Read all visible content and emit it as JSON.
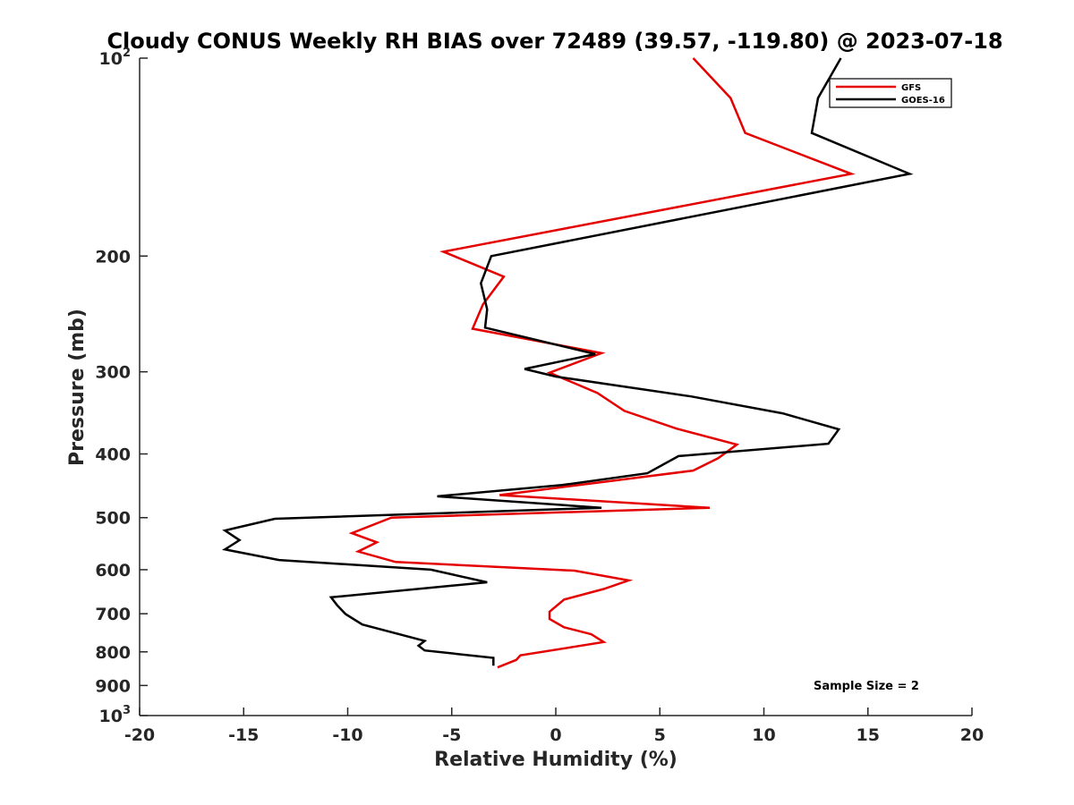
{
  "chart_data": {
    "type": "line",
    "title": "Cloudy CONUS Weekly RH BIAS over 72489 (39.57, -119.80) @ 2023-07-18",
    "xlabel": "Relative Humidity (%)",
    "ylabel": "Pressure (mb)",
    "xlim": [
      -20,
      20
    ],
    "ylim": [
      100,
      1000
    ],
    "y_scale": "log",
    "y_reversed": true,
    "x_ticks": [
      "-20",
      "-15",
      "-10",
      "-5",
      "0",
      "5",
      "10",
      "15",
      "20"
    ],
    "y_ticks": [
      {
        "value": 100,
        "base": "10",
        "exp": "2"
      },
      {
        "value": 200,
        "label": "200"
      },
      {
        "value": 300,
        "label": "300"
      },
      {
        "value": 400,
        "label": "400"
      },
      {
        "value": 500,
        "label": "500"
      },
      {
        "value": 600,
        "label": "600"
      },
      {
        "value": 700,
        "label": "700"
      },
      {
        "value": 800,
        "label": "800"
      },
      {
        "value": 900,
        "label": "900"
      },
      {
        "value": 1000,
        "base": "10",
        "exp": "3"
      }
    ],
    "grid": false,
    "legend_position": "top-right",
    "annotation": "Sample Size = 2",
    "series": [
      {
        "name": "GFS",
        "color": "#e50000",
        "points": [
          [
            6.6,
            100
          ],
          [
            8.4,
            115
          ],
          [
            9.1,
            130
          ],
          [
            14.2,
            150
          ],
          [
            -5.4,
            197
          ],
          [
            -2.5,
            215
          ],
          [
            -3.5,
            237
          ],
          [
            -4.0,
            258
          ],
          [
            2.2,
            281
          ],
          [
            -0.3,
            301
          ],
          [
            2.0,
            323
          ],
          [
            3.3,
            344
          ],
          [
            5.8,
            366
          ],
          [
            8.7,
            387
          ],
          [
            7.8,
            406
          ],
          [
            6.6,
            424
          ],
          [
            -2.7,
            462
          ],
          [
            7.4,
            483
          ],
          [
            -7.9,
            500
          ],
          [
            -9.8,
            528
          ],
          [
            -8.6,
            545
          ],
          [
            -9.5,
            563
          ],
          [
            -7.7,
            584
          ],
          [
            0.9,
            602
          ],
          [
            3.5,
            623
          ],
          [
            2.3,
            642
          ],
          [
            0.4,
            666
          ],
          [
            -0.3,
            695
          ],
          [
            -0.3,
            713
          ],
          [
            0.4,
            734
          ],
          [
            1.7,
            752
          ],
          [
            2.3,
            773
          ],
          [
            -1.7,
            810
          ],
          [
            -1.9,
            823
          ],
          [
            -2.8,
            845
          ]
        ]
      },
      {
        "name": "GOES-16",
        "color": "#000000",
        "points": [
          [
            13.7,
            100
          ],
          [
            12.6,
            115
          ],
          [
            12.3,
            130
          ],
          [
            17.0,
            150
          ],
          [
            -3.1,
            200
          ],
          [
            -3.6,
            220
          ],
          [
            -3.3,
            241
          ],
          [
            -3.4,
            257
          ],
          [
            1.9,
            282
          ],
          [
            -1.5,
            297
          ],
          [
            0.0,
            305
          ],
          [
            6.5,
            327
          ],
          [
            10.9,
            347
          ],
          [
            13.6,
            367
          ],
          [
            13.1,
            386
          ],
          [
            5.9,
            403
          ],
          [
            4.4,
            428
          ],
          [
            0.3,
            446
          ],
          [
            -5.7,
            464
          ],
          [
            2.2,
            483
          ],
          [
            -13.5,
            502
          ],
          [
            -15.9,
            523
          ],
          [
            -15.2,
            541
          ],
          [
            -15.9,
            559
          ],
          [
            -13.3,
            580
          ],
          [
            -6.0,
            600
          ],
          [
            -3.3,
            627
          ],
          [
            -10.8,
            661
          ],
          [
            -10.5,
            680
          ],
          [
            -10.1,
            701
          ],
          [
            -9.3,
            727
          ],
          [
            -6.3,
            770
          ],
          [
            -6.6,
            783
          ],
          [
            -6.3,
            796
          ],
          [
            -3.0,
            817
          ],
          [
            -3.0,
            840
          ]
        ]
      }
    ]
  }
}
